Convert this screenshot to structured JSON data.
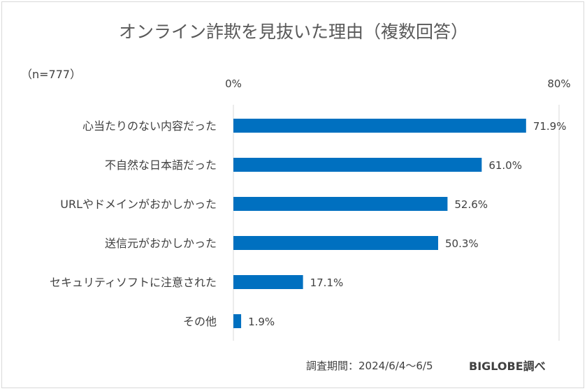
{
  "title": "オンライン詐欺を見抜いた理由（複数回答）",
  "sample_note": "（n=777）",
  "footer": {
    "period": "調査期間：2024/6/4～6/5",
    "source": "BIGLOBE調べ"
  },
  "colors": {
    "bar": "#0070c0",
    "gridline": "#d9d9d9",
    "text": "#404040"
  },
  "chart_data": {
    "type": "bar",
    "orientation": "horizontal",
    "categories": [
      "心当たりのない内容だった",
      "不自然な日本語だった",
      "URLやドメインがおかしかった",
      "送信元がおかしかった",
      "セキュリティソフトに注意された",
      "その他"
    ],
    "values": [
      71.9,
      61.0,
      52.6,
      50.3,
      17.1,
      1.9
    ],
    "value_labels": [
      "71.9%",
      "61.0%",
      "52.6%",
      "50.3%",
      "17.1%",
      "1.9%"
    ],
    "xlim": [
      0,
      80
    ],
    "tick_labels": [
      "0%",
      "80%"
    ],
    "grid": true,
    "legend": "none"
  }
}
